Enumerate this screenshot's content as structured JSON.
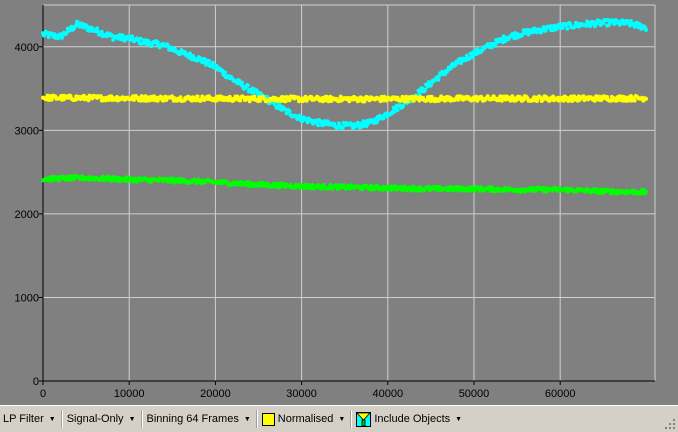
{
  "toolbar": {
    "lp_filter": "LP Filter",
    "signal_only": "Signal-Only",
    "binning": "Binning 64 Frames",
    "normalised": "Normalised",
    "include_objects": "Include Objects"
  },
  "icons": {
    "dropdown": "triangle-down",
    "normalised_swatch": "#ffff00",
    "include_objects": "include-objects-icon"
  },
  "chart_data": {
    "type": "scatter",
    "background": "#808080",
    "grid": true,
    "grid_color": "#d0d0d0",
    "xlim": [
      0,
      71000
    ],
    "ylim": [
      0,
      4500
    ],
    "x_ticks": [
      0,
      10000,
      20000,
      30000,
      40000,
      50000,
      60000
    ],
    "y_ticks": [
      0,
      1000,
      2000,
      3000,
      4000
    ],
    "series": [
      {
        "color": "#00ffff",
        "x": [
          0,
          2000,
          4000,
          6000,
          8000,
          10000,
          12000,
          14000,
          16000,
          18000,
          20000,
          22000,
          24000,
          26000,
          28000,
          30000,
          32000,
          34000,
          36000,
          38000,
          40000,
          42000,
          44000,
          46000,
          48000,
          50000,
          52000,
          54000,
          56000,
          58000,
          60000,
          62000,
          64000,
          66000,
          68000,
          70000
        ],
        "y": [
          4150,
          4120,
          4270,
          4200,
          4120,
          4100,
          4050,
          4020,
          3930,
          3860,
          3760,
          3610,
          3490,
          3370,
          3240,
          3140,
          3090,
          3060,
          3050,
          3090,
          3200,
          3330,
          3480,
          3650,
          3800,
          3920,
          4020,
          4120,
          4170,
          4210,
          4240,
          4260,
          4280,
          4290,
          4280,
          4230
        ],
        "noise": 35
      },
      {
        "color": "#ffff00",
        "x": [
          0,
          10000,
          20000,
          30000,
          40000,
          50000,
          60000,
          70000
        ],
        "y": [
          3390,
          3385,
          3380,
          3375,
          3375,
          3380,
          3380,
          3385
        ],
        "noise": 30
      },
      {
        "color": "#00ff00",
        "x": [
          0,
          5000,
          10000,
          15000,
          20000,
          25000,
          30000,
          35000,
          40000,
          45000,
          50000,
          55000,
          60000,
          65000,
          70000
        ],
        "y": [
          2420,
          2430,
          2410,
          2400,
          2380,
          2350,
          2330,
          2320,
          2310,
          2300,
          2300,
          2290,
          2290,
          2270,
          2260
        ],
        "noise": 25
      }
    ]
  }
}
